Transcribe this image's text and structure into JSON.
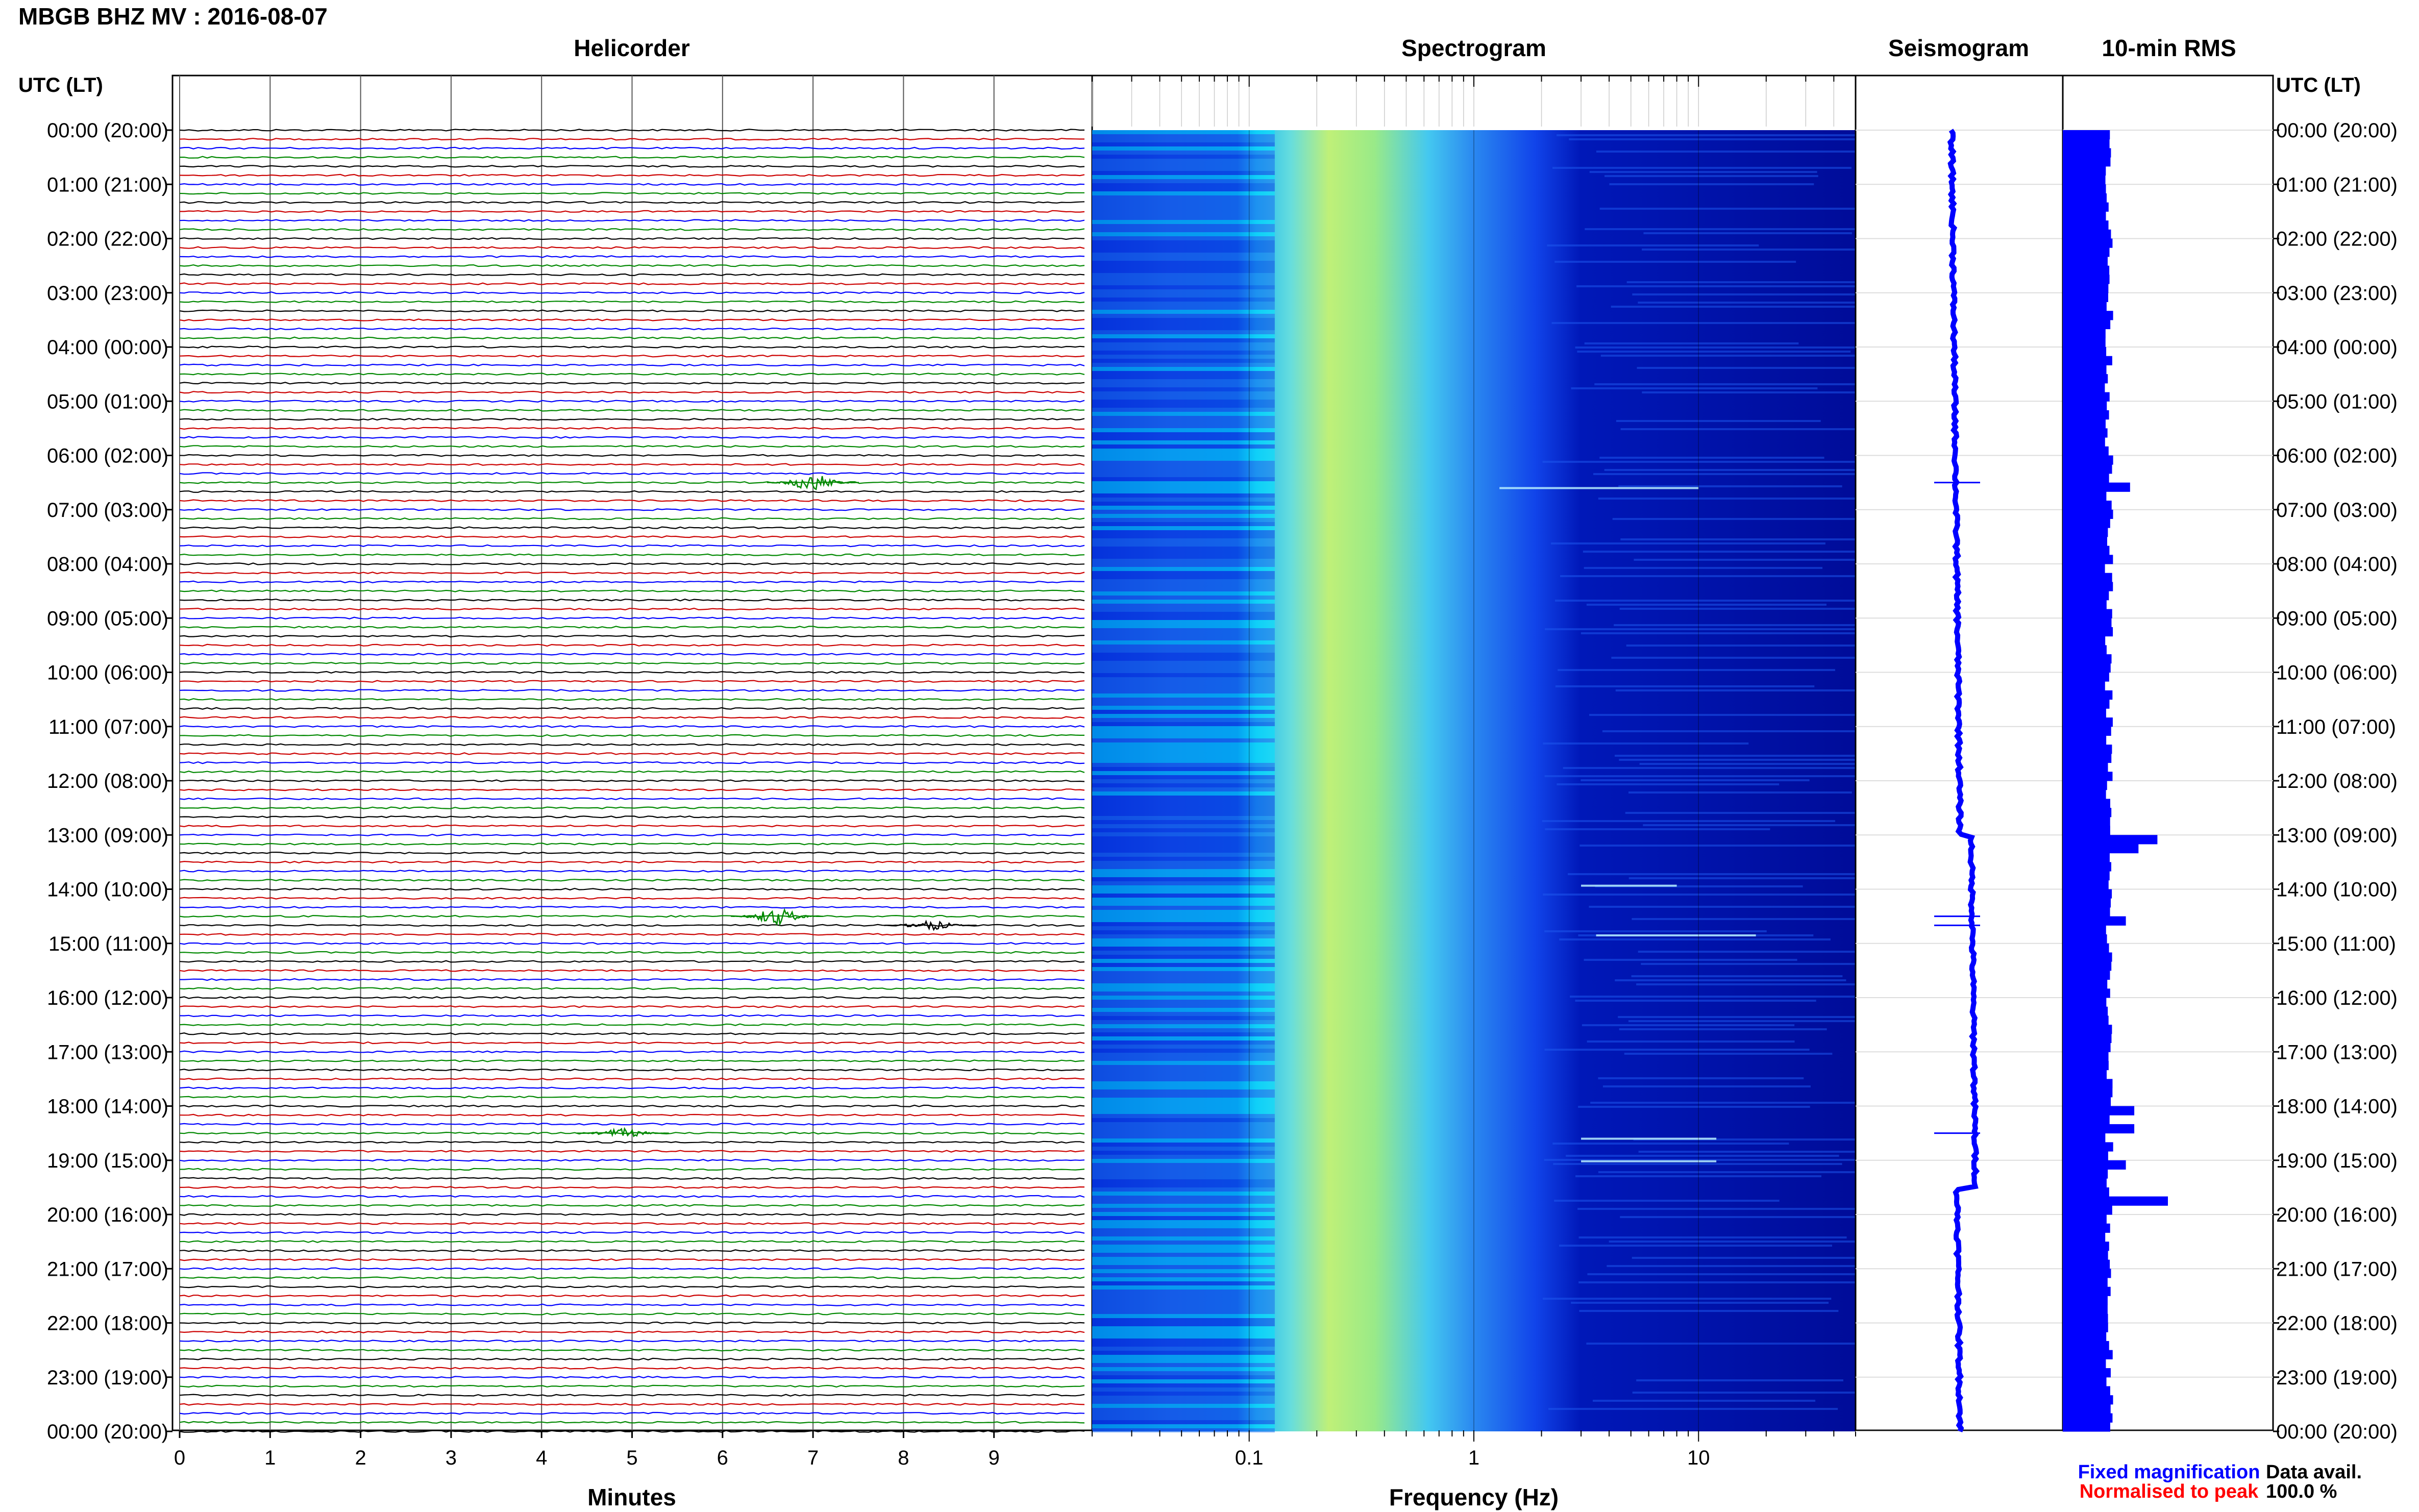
{
  "header": {
    "station_title": "MBGB BHZ MV : 2016-08-07"
  },
  "panels": {
    "helicorder_title": "Helicorder",
    "spectrogram_title": "Spectrogram",
    "seismogram_title": "Seismogram",
    "rms_title": "10-min RMS"
  },
  "axes": {
    "left_label": "UTC (LT)",
    "right_label": "UTC (LT)",
    "helicorder_xlabel": "Minutes",
    "spectrogram_xlabel": "Frequency (Hz)"
  },
  "footer": {
    "fixed_mag": "Fixed magnification",
    "normalised": "Normalised to peak",
    "data_avail_label": "Data avail.",
    "data_avail_value": "100.0 %"
  },
  "colors": {
    "trace_cycle": [
      "#000000",
      "#cc0000",
      "#0000ff",
      "#008800"
    ],
    "seismogram": "#0000ff",
    "rms": "#0000ff",
    "fixed_mag": "#0000ff",
    "normalised": "#ff0000"
  },
  "chart_data": [
    {
      "type": "line",
      "panel": "Helicorder",
      "xlabel": "Minutes",
      "x_ticks": [
        "0",
        "1",
        "2",
        "3",
        "4",
        "5",
        "6",
        "7",
        "8",
        "9"
      ],
      "xlim": [
        0,
        10
      ],
      "y_ticks": [
        "00:00 (20:00)",
        "01:00 (21:00)",
        "02:00 (22:00)",
        "03:00 (23:00)",
        "04:00 (00:00)",
        "05:00 (01:00)",
        "06:00 (02:00)",
        "07:00 (03:00)",
        "08:00 (04:00)",
        "09:00 (05:00)",
        "10:00 (06:00)",
        "11:00 (07:00)",
        "12:00 (08:00)",
        "13:00 (09:00)",
        "14:00 (10:00)",
        "15:00 (11:00)",
        "16:00 (12:00)",
        "17:00 (13:00)",
        "18:00 (14:00)",
        "19:00 (15:00)",
        "20:00 (16:00)",
        "21:00 (17:00)",
        "22:00 (18:00)",
        "23:00 (19:00)",
        "00:00 (20:00)"
      ],
      "trace_minutes": 10,
      "traces_per_hour": 6,
      "events": [
        {
          "time_utc": "06:30",
          "minute": 7.0,
          "amplitude": "moderate"
        },
        {
          "time_utc": "14:30",
          "minute": 6.6,
          "amplitude": "moderate"
        },
        {
          "time_utc": "14:40",
          "minute": 8.3,
          "amplitude": "small"
        },
        {
          "time_utc": "18:30",
          "minute": 4.9,
          "amplitude": "small"
        }
      ]
    },
    {
      "type": "heatmap",
      "panel": "Spectrogram",
      "xlabel": "Frequency (Hz)",
      "x_scale": "log",
      "x_ticks": [
        "0.1",
        "1",
        "10"
      ],
      "xlim": [
        0.02,
        50
      ],
      "colormap": "jet",
      "energy_band_hz": [
        0.15,
        1.0
      ],
      "peak_band_hz": [
        0.2,
        0.5
      ]
    },
    {
      "type": "line",
      "panel": "Seismogram",
      "note_level_changes_utc": [
        "13:00",
        "19:30"
      ]
    },
    {
      "type": "bar",
      "panel": "10-min RMS",
      "orientation": "horizontal",
      "baseline_relative": 0.22,
      "spikes": [
        {
          "time_utc": "06:30",
          "relative": 0.32
        },
        {
          "time_utc": "13:00",
          "relative": 0.45
        },
        {
          "time_utc": "13:10",
          "relative": 0.36
        },
        {
          "time_utc": "14:30",
          "relative": 0.3
        },
        {
          "time_utc": "18:00",
          "relative": 0.34
        },
        {
          "time_utc": "18:20",
          "relative": 0.34
        },
        {
          "time_utc": "19:00",
          "relative": 0.3
        },
        {
          "time_utc": "19:40",
          "relative": 0.5
        }
      ]
    }
  ]
}
